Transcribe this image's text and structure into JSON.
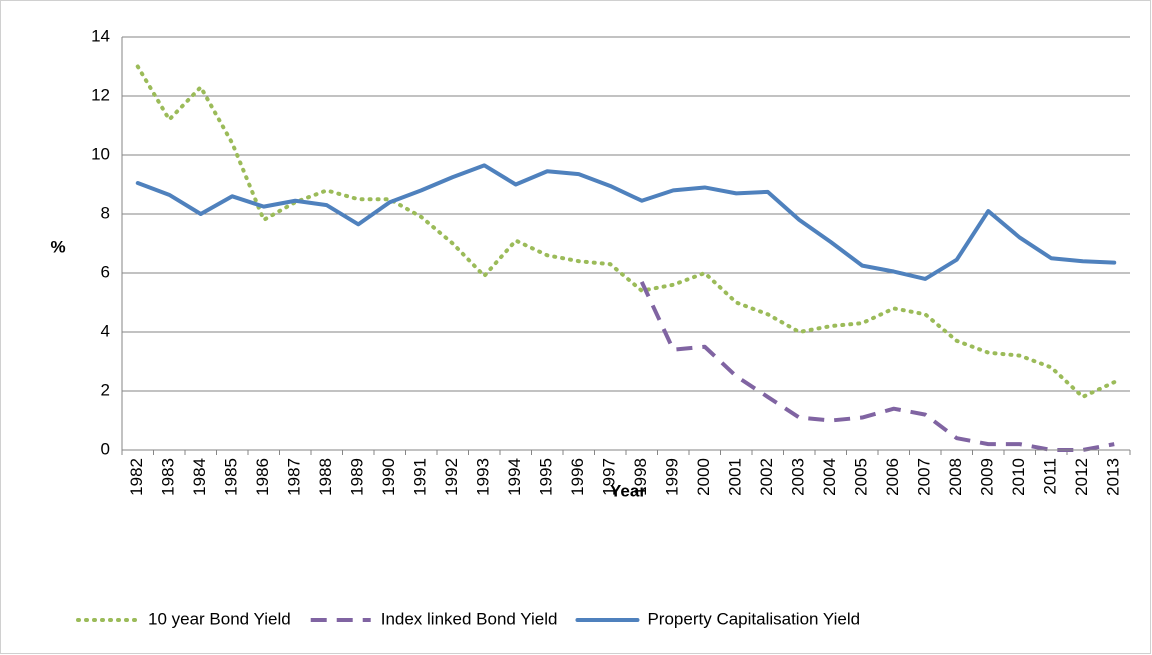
{
  "chart_data": {
    "type": "line",
    "x_label": "Year",
    "y_label": "%",
    "categories": [
      "1982",
      "1983",
      "1984",
      "1985",
      "1986",
      "1987",
      "1988",
      "1989",
      "1990",
      "1991",
      "1992",
      "1993",
      "1994",
      "1995",
      "1996",
      "1997",
      "1998",
      "1999",
      "2000",
      "2001",
      "2002",
      "2003",
      "2004",
      "2005",
      "2006",
      "2007",
      "2008",
      "2009",
      "2010",
      "2011",
      "2012",
      "2013"
    ],
    "series": [
      {
        "name": "10 year Bond Yield",
        "color": "#9bbb59",
        "dash": "dotted",
        "values": [
          13.0,
          11.2,
          12.3,
          10.4,
          7.8,
          8.4,
          8.8,
          8.5,
          8.5,
          7.9,
          7.0,
          5.9,
          7.1,
          6.6,
          6.4,
          6.3,
          5.4,
          5.6,
          6.0,
          5.0,
          4.6,
          4.0,
          4.2,
          4.3,
          4.8,
          4.6,
          3.7,
          3.3,
          3.2,
          2.8,
          1.8,
          2.3
        ]
      },
      {
        "name": "Index linked Bond Yield",
        "color": "#8064a2",
        "dash": "dashed",
        "values": [
          null,
          null,
          null,
          null,
          null,
          null,
          null,
          null,
          null,
          null,
          null,
          null,
          null,
          null,
          null,
          null,
          5.7,
          3.4,
          3.5,
          2.5,
          1.8,
          1.1,
          1.0,
          1.1,
          1.4,
          1.2,
          0.4,
          0.2,
          0.2,
          0.0,
          0.0,
          0.2
        ]
      },
      {
        "name": "Property Capitalisation Yield",
        "color": "#4f81bd",
        "dash": "solid",
        "values": [
          9.05,
          8.65,
          8.0,
          8.6,
          8.25,
          8.45,
          8.3,
          7.65,
          8.4,
          8.8,
          9.25,
          9.65,
          9.0,
          9.45,
          9.35,
          8.95,
          8.45,
          8.8,
          8.9,
          8.7,
          8.75,
          7.8,
          7.05,
          6.25,
          6.05,
          5.8,
          6.45,
          8.1,
          7.2,
          6.5,
          6.4,
          6.35
        ]
      }
    ],
    "ylim": [
      0,
      14
    ],
    "yticks": [
      0,
      2,
      4,
      6,
      8,
      10,
      12,
      14
    ],
    "grid": true,
    "legend": "bottom"
  }
}
